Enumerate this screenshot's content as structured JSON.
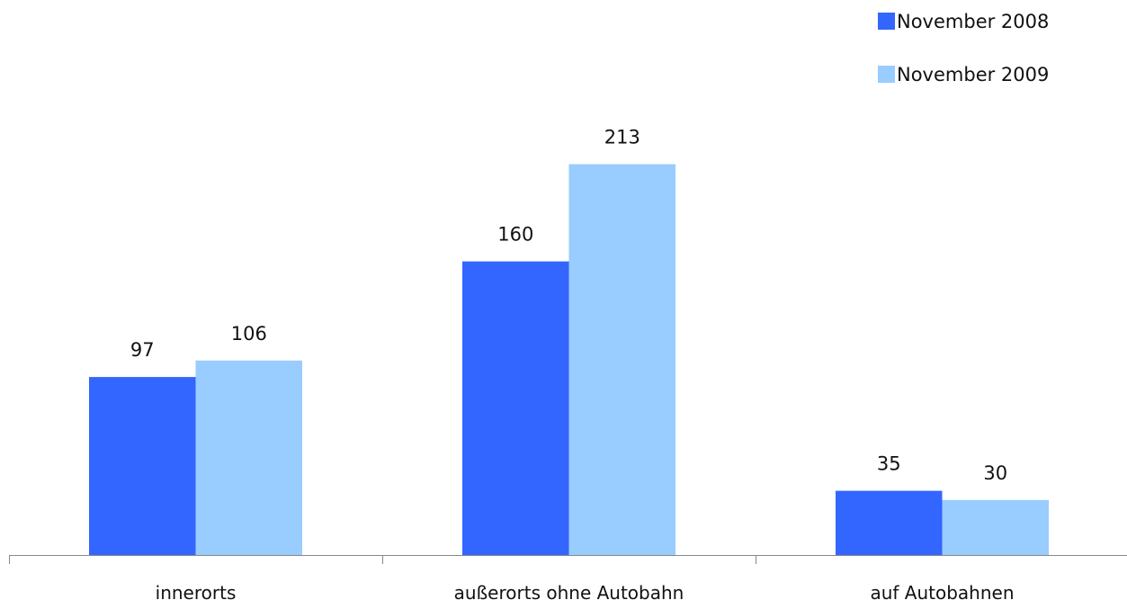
{
  "chart_data": {
    "type": "bar",
    "title": "",
    "xlabel": "",
    "ylabel": "",
    "categories": [
      "innerorts",
      "außerorts ohne Autobahn",
      "auf Autobahnen"
    ],
    "series": [
      {
        "name": "November 2008",
        "values": [
          97,
          160,
          35
        ],
        "color": "#3366ff"
      },
      {
        "name": "November 2009",
        "values": [
          106,
          213,
          30
        ],
        "color": "#99ccff"
      }
    ],
    "ylim": [
      0,
      250
    ],
    "grid": false,
    "legend": "top-right"
  }
}
